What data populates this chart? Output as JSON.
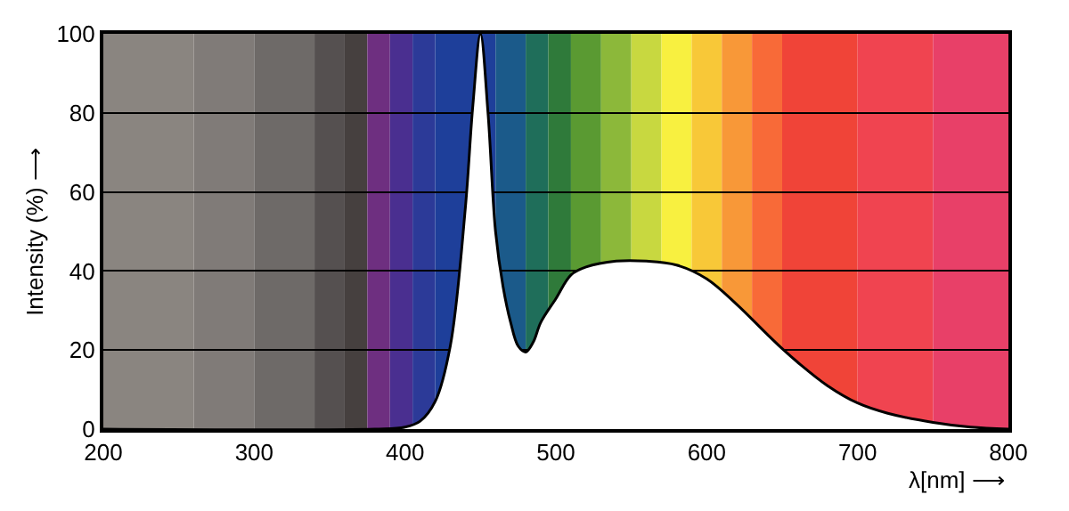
{
  "chart_data": {
    "type": "area",
    "xlabel": "λ[nm] ⟶",
    "ylabel": "Intensity (%) ⟶",
    "x": [
      200,
      380,
      400,
      410,
      420,
      430,
      440,
      445,
      450,
      455,
      460,
      465,
      470,
      475,
      480,
      485,
      490,
      500,
      510,
      520,
      540,
      560,
      580,
      600,
      620,
      640,
      651,
      660,
      680,
      700,
      720,
      750,
      775,
      800
    ],
    "series": [
      {
        "color": "#000000",
        "values": [
          0,
          0,
          0.5,
          2,
          7,
          21,
          56,
          82,
          100,
          80,
          50,
          36,
          27,
          21,
          19.5,
          22,
          27,
          33,
          39,
          41,
          42.5,
          42.5,
          41.5,
          38,
          31.5,
          24,
          20,
          17,
          11,
          6.6,
          4,
          1.7,
          0.5,
          0
        ]
      }
    ],
    "xlim": [
      200,
      800
    ],
    "ylim": [
      0,
      100
    ],
    "xticks": [
      200,
      300,
      400,
      500,
      600,
      700,
      800
    ],
    "yticks": [
      0,
      20,
      40,
      60,
      80,
      100
    ],
    "grid": "y",
    "bands": [
      {
        "axis": "x",
        "from": 200,
        "to": 260,
        "color": "#8a8580"
      },
      {
        "axis": "x",
        "from": 260,
        "to": 300,
        "color": "#807b78"
      },
      {
        "axis": "x",
        "from": 300,
        "to": 340,
        "color": "#6e6a68"
      },
      {
        "axis": "x",
        "from": 340,
        "to": 360,
        "color": "#555050"
      },
      {
        "axis": "x",
        "from": 360,
        "to": 375,
        "color": "#46403f"
      },
      {
        "axis": "x",
        "from": 375,
        "to": 390,
        "color": "#6e2f80"
      },
      {
        "axis": "x",
        "from": 390,
        "to": 405,
        "color": "#4a2f90"
      },
      {
        "axis": "x",
        "from": 405,
        "to": 420,
        "color": "#2c3a98"
      },
      {
        "axis": "x",
        "from": 420,
        "to": 460,
        "color": "#1e3f9a"
      },
      {
        "axis": "x",
        "from": 460,
        "to": 480,
        "color": "#1b5a8a"
      },
      {
        "axis": "x",
        "from": 480,
        "to": 495,
        "color": "#1f6e5a"
      },
      {
        "axis": "x",
        "from": 495,
        "to": 510,
        "color": "#2f7a3a"
      },
      {
        "axis": "x",
        "from": 510,
        "to": 530,
        "color": "#5a9a32"
      },
      {
        "axis": "x",
        "from": 530,
        "to": 550,
        "color": "#8cb83a"
      },
      {
        "axis": "x",
        "from": 550,
        "to": 570,
        "color": "#c8d840"
      },
      {
        "axis": "x",
        "from": 570,
        "to": 590,
        "color": "#f8f040"
      },
      {
        "axis": "x",
        "from": 590,
        "to": 610,
        "color": "#f8c838"
      },
      {
        "axis": "x",
        "from": 610,
        "to": 630,
        "color": "#f89838"
      },
      {
        "axis": "x",
        "from": 630,
        "to": 650,
        "color": "#f86a38"
      },
      {
        "axis": "x",
        "from": 650,
        "to": 700,
        "color": "#f04438"
      },
      {
        "axis": "x",
        "from": 700,
        "to": 750,
        "color": "#f04450"
      },
      {
        "axis": "x",
        "from": 750,
        "to": 800,
        "color": "#e84068"
      }
    ]
  }
}
